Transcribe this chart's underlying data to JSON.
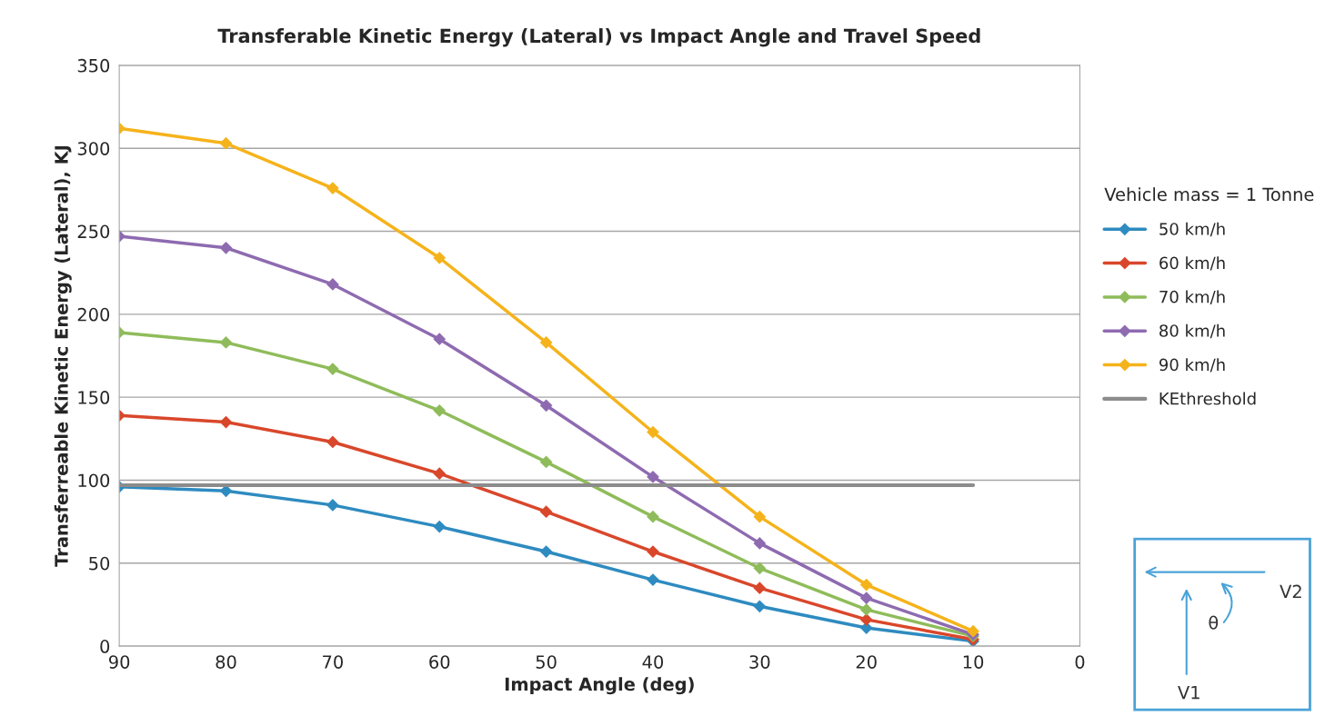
{
  "chart_data": {
    "type": "line",
    "title": "Transferable Kinetic Energy (Lateral) vs Impact Angle and Travel Speed",
    "xlabel": "Impact Angle (deg)",
    "ylabel": "Transferreable Kinetic Energy (Lateral), KJ",
    "legend_title": "Vehicle mass = 1 Tonne",
    "x": [
      90,
      80,
      70,
      60,
      50,
      40,
      30,
      20,
      10
    ],
    "series": [
      {
        "name": "50 km/h",
        "color": "#2e8bc0",
        "marker": "diamond",
        "values": [
          96,
          93.5,
          85,
          72,
          57,
          40,
          24,
          11,
          3
        ]
      },
      {
        "name": "60 km/h",
        "color": "#d9472b",
        "marker": "diamond",
        "values": [
          139,
          135,
          123,
          104,
          81,
          57,
          35,
          16,
          4
        ]
      },
      {
        "name": "70 km/h",
        "color": "#8fbc5a",
        "marker": "diamond",
        "values": [
          189,
          183,
          167,
          142,
          111,
          78,
          47,
          22,
          6
        ]
      },
      {
        "name": "80 km/h",
        "color": "#8e6bb0",
        "marker": "diamond",
        "values": [
          247,
          240,
          218,
          185,
          145,
          102,
          62,
          29,
          7
        ]
      },
      {
        "name": "90 km/h",
        "color": "#f5b31b",
        "marker": "diamond",
        "values": [
          312,
          303,
          276,
          234,
          183,
          129,
          78,
          37,
          9
        ]
      },
      {
        "name": "KEthreshold",
        "color": "#8c8c8c",
        "marker": "none",
        "values": [
          97,
          97,
          97,
          97,
          97,
          97,
          97,
          97,
          97
        ]
      }
    ],
    "xlim": [
      90,
      0
    ],
    "xticks": [
      90,
      80,
      70,
      60,
      50,
      40,
      30,
      20,
      10,
      0
    ],
    "ylim": [
      0,
      350
    ],
    "yticks": [
      0,
      50,
      100,
      150,
      200,
      250,
      300,
      350
    ],
    "grid": "y",
    "legend": "right",
    "annotations": [
      "V2",
      "θ",
      "V1"
    ]
  }
}
